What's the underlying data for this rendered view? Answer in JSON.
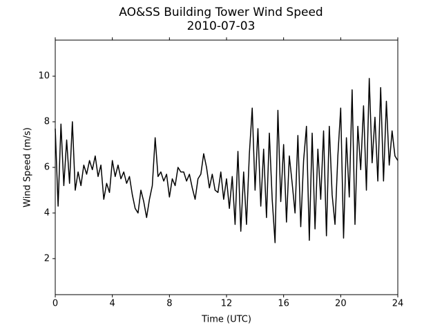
{
  "chart_data": {
    "type": "line",
    "title": "AO&SS Building Tower Wind Speed",
    "subtitle": "2010-07-03",
    "x_label": "Time (UTC)",
    "y_label": "Wind Speed (m/s)",
    "color": "#000000",
    "xlim": [
      0,
      24
    ],
    "xticks": [
      0,
      4,
      8,
      12,
      16,
      20,
      24
    ],
    "ylim": [
      0.42,
      11.58
    ],
    "yticks": [
      2,
      4,
      6,
      8,
      10
    ],
    "x": [
      0,
      0.2,
      0.4,
      0.6,
      0.8,
      1,
      1.2,
      1.4,
      1.6,
      1.8,
      2,
      2.2,
      2.4,
      2.6,
      2.8,
      3,
      3.2,
      3.4,
      3.6,
      3.8,
      4,
      4.2,
      4.4,
      4.6,
      4.8,
      5,
      5.2,
      5.4,
      5.6,
      5.8,
      6,
      6.2,
      6.4,
      6.6,
      6.8,
      7,
      7.2,
      7.4,
      7.6,
      7.8,
      8,
      8.2,
      8.4,
      8.6,
      8.8,
      9,
      9.2,
      9.4,
      9.6,
      9.8,
      10,
      10.2,
      10.4,
      10.6,
      10.8,
      11,
      11.2,
      11.4,
      11.6,
      11.8,
      12,
      12.2,
      12.4,
      12.6,
      12.8,
      13,
      13.2,
      13.4,
      13.6,
      13.8,
      14,
      14.2,
      14.4,
      14.6,
      14.8,
      15,
      15.2,
      15.4,
      15.6,
      15.8,
      16,
      16.2,
      16.4,
      16.6,
      16.8,
      17,
      17.2,
      17.4,
      17.6,
      17.8,
      18,
      18.2,
      18.4,
      18.6,
      18.8,
      19,
      19.2,
      19.4,
      19.6,
      19.8,
      20,
      20.2,
      20.4,
      20.6,
      20.8,
      21,
      21.2,
      21.4,
      21.6,
      21.8,
      22,
      22.2,
      22.4,
      22.6,
      22.8,
      23,
      23.2,
      23.4,
      23.6,
      23.8,
      24
    ],
    "values": [
      7.7,
      4.3,
      7.9,
      5.2,
      7.2,
      5.3,
      8.0,
      5.0,
      5.8,
      5.2,
      6.1,
      5.7,
      6.3,
      5.9,
      6.5,
      5.6,
      6.1,
      4.6,
      5.3,
      4.9,
      6.3,
      5.6,
      6.1,
      5.5,
      5.8,
      5.3,
      5.6,
      4.8,
      4.2,
      4.0,
      5.0,
      4.5,
      3.8,
      4.6,
      5.2,
      7.3,
      5.6,
      5.8,
      5.4,
      5.7,
      4.7,
      5.5,
      5.2,
      6.0,
      5.8,
      5.8,
      5.4,
      5.7,
      5.1,
      4.6,
      5.5,
      5.7,
      6.6,
      6.0,
      5.1,
      5.7,
      5.0,
      4.9,
      5.8,
      4.6,
      5.5,
      4.2,
      5.6,
      3.5,
      6.7,
      3.2,
      5.8,
      3.5,
      6.6,
      8.6,
      5.0,
      7.7,
      4.3,
      6.8,
      3.8,
      7.5,
      4.6,
      2.7,
      8.5,
      4.5,
      7.0,
      3.6,
      6.5,
      5.3,
      4.0,
      7.4,
      3.4,
      6.3,
      7.8,
      2.8,
      7.5,
      3.3,
      6.8,
      4.6,
      7.6,
      3.0,
      7.8,
      4.8,
      3.5,
      6.5,
      8.6,
      2.9,
      7.3,
      4.7,
      9.4,
      3.5,
      7.8,
      5.9,
      8.7,
      5.0,
      9.9,
      6.2,
      8.2,
      5.4,
      9.5,
      5.4,
      8.9,
      6.1,
      7.6,
      6.5,
      6.3
    ]
  }
}
